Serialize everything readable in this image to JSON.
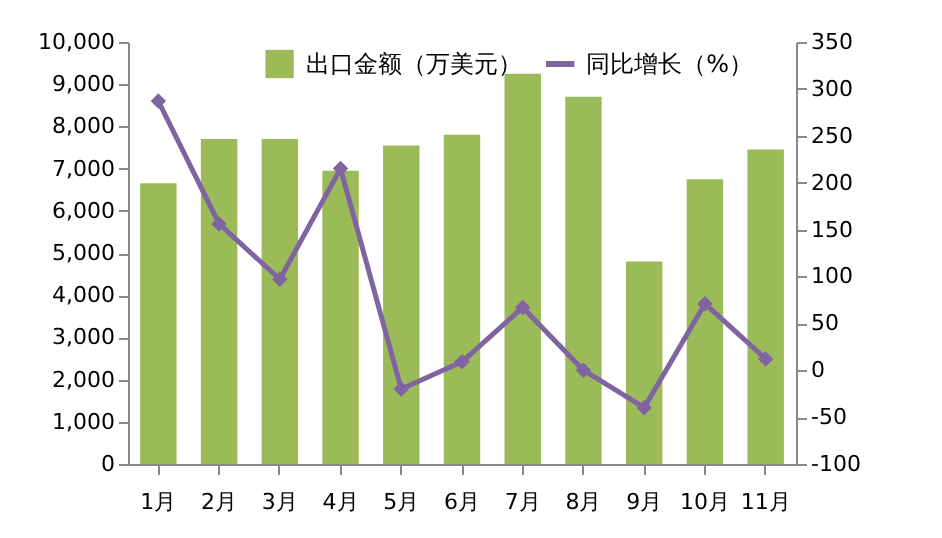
{
  "chart_data": {
    "type": "bar",
    "categories": [
      "1月",
      "2月",
      "3月",
      "4月",
      "5月",
      "6月",
      "7月",
      "8月",
      "9月",
      "10月",
      "11月"
    ],
    "series": [
      {
        "name": "出口金额（万美元）",
        "color": "#9bbb59",
        "values": [
          6650,
          7700,
          7700,
          6950,
          7550,
          7800,
          9250,
          8700,
          4800,
          6750,
          7450
        ]
      },
      {
        "name": "同比增长（%）",
        "type": "line",
        "axis": "y2",
        "color": "#8064a2",
        "values": [
          287,
          156,
          97,
          215,
          -20,
          9,
          67,
          0,
          -40,
          71,
          12
        ]
      }
    ],
    "ylim": [
      0,
      10000
    ],
    "yticks": [
      0,
      {
        "value": 1000,
        "label": "1,000"
      },
      {
        "value": 2000,
        "label": "2,000"
      },
      {
        "value": 3000,
        "label": "3,000"
      },
      {
        "value": 4000,
        "label": "4,000"
      },
      {
        "value": 5000,
        "label": "5,000"
      },
      {
        "value": 6000,
        "label": "6,000"
      },
      {
        "value": 7000,
        "label": "7,000"
      },
      {
        "value": 8000,
        "label": "8,000"
      },
      {
        "value": 9000,
        "label": "9,000"
      },
      {
        "value": 10000,
        "label": "10,000"
      }
    ],
    "y2lim": [
      -100,
      350
    ],
    "y2ticks": [
      -100,
      -50,
      0,
      50,
      100,
      150,
      200,
      250,
      300,
      350
    ],
    "legend": "top",
    "marker": "diamond",
    "grid": false
  }
}
